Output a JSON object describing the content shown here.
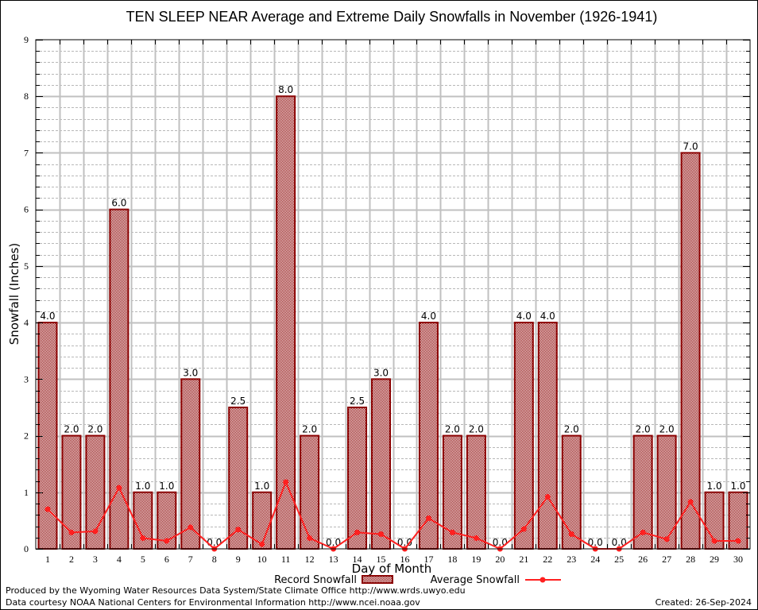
{
  "chart_data": {
    "type": "bar",
    "title": "TEN SLEEP NEAR Average and Extreme Daily Snowfalls in November (1926-1941)",
    "xlabel": "Day of Month",
    "ylabel": "Snowfall (Inches)",
    "ylim": [
      0,
      9
    ],
    "yticks": [
      "0",
      "1",
      "2",
      "3",
      "4",
      "5",
      "6",
      "7",
      "8",
      "9"
    ],
    "grid": true,
    "categories": [
      "1",
      "2",
      "3",
      "4",
      "5",
      "6",
      "7",
      "8",
      "9",
      "10",
      "11",
      "12",
      "13",
      "14",
      "15",
      "16",
      "17",
      "18",
      "19",
      "20",
      "21",
      "22",
      "23",
      "24",
      "25",
      "26",
      "27",
      "28",
      "29",
      "30"
    ],
    "series": [
      {
        "name": "Record Snowfall",
        "type": "bar",
        "color": "#8b0000",
        "values": [
          4.0,
          2.0,
          2.0,
          6.0,
          1.0,
          1.0,
          3.0,
          0.0,
          2.5,
          1.0,
          8.0,
          2.0,
          0.0,
          2.5,
          3.0,
          0.0,
          4.0,
          2.0,
          2.0,
          0.0,
          4.0,
          4.0,
          2.0,
          0.0,
          0.0,
          2.0,
          2.0,
          7.0,
          1.0,
          1.0
        ],
        "labels": [
          "4.0",
          "2.0",
          "2.0",
          "6.0",
          "1.0",
          "1.0",
          "3.0",
          "0.0",
          "2.5",
          "1.0",
          "8.0",
          "2.0",
          "0.0",
          "2.5",
          "3.0",
          "0.0",
          "4.0",
          "2.0",
          "2.0",
          "0.0",
          "4.0",
          "4.0",
          "2.0",
          "0.0",
          "0.0",
          "2.0",
          "2.0",
          "7.0",
          "1.0",
          "1.0"
        ]
      },
      {
        "name": "Average Snowfall",
        "type": "line",
        "color": "#ff2020",
        "values": [
          0.7,
          0.29,
          0.31,
          1.08,
          0.19,
          0.14,
          0.38,
          0.0,
          0.34,
          0.08,
          1.18,
          0.19,
          0.0,
          0.29,
          0.26,
          0.0,
          0.54,
          0.29,
          0.19,
          0.0,
          0.35,
          0.92,
          0.26,
          0.0,
          0.0,
          0.29,
          0.17,
          0.83,
          0.14,
          0.14
        ]
      }
    ],
    "legend": "bottom-center"
  },
  "footer": {
    "line1": "Produced by the Wyoming Water Resources Data System/State Climate Office http://www.wrds.uwyo.edu",
    "line2": "Data courtesy NOAA National Centers for Environmental Information http://www.ncei.noaa.gov",
    "created": "Created: 26-Sep-2024"
  }
}
